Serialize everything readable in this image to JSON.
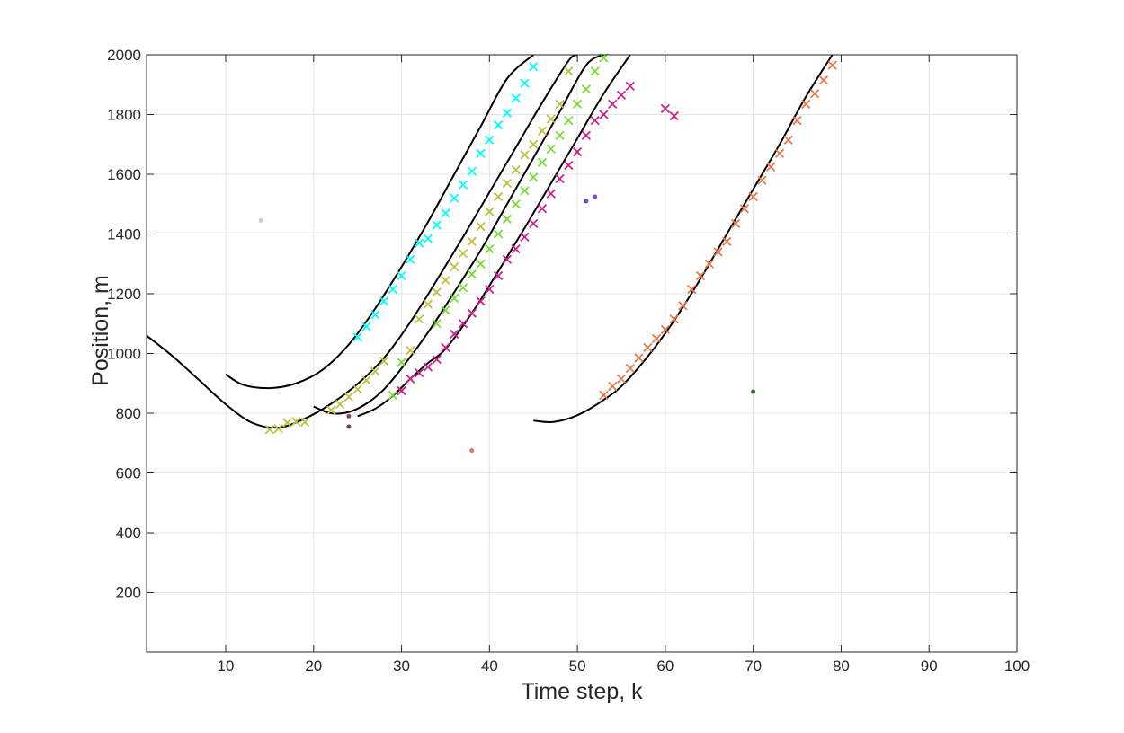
{
  "chart_data": {
    "type": "scatter",
    "title": "",
    "xlabel": "Time step, k",
    "ylabel": "Position, m",
    "xlim": [
      1,
      100
    ],
    "ylim": [
      0,
      2000
    ],
    "xticks": [
      10,
      20,
      30,
      40,
      50,
      60,
      70,
      80,
      90,
      100
    ],
    "yticks": [
      200,
      400,
      600,
      800,
      1000,
      1200,
      1400,
      1600,
      1800,
      2000
    ],
    "grid": true,
    "box": true,
    "curves": [
      {
        "color": "#000000",
        "x": [
          10,
          12,
          15,
          18,
          21,
          24,
          27,
          30,
          33,
          36,
          39,
          42,
          45
        ],
        "y": [
          930,
          895,
          884,
          900,
          945,
          1030,
          1150,
          1290,
          1440,
          1600,
          1760,
          1920,
          2000
        ]
      },
      {
        "color": "#000000",
        "x": [
          1,
          4,
          7,
          10,
          13,
          16,
          19,
          22,
          25,
          28,
          31,
          34,
          37,
          40,
          43,
          46,
          49,
          50
        ],
        "y": [
          1060,
          990,
          910,
          830,
          768,
          752,
          782,
          832,
          898,
          985,
          1105,
          1245,
          1390,
          1540,
          1690,
          1840,
          1980,
          2000
        ]
      },
      {
        "color": "#000000",
        "x": [
          20,
          22,
          24,
          26,
          28,
          30,
          33,
          36,
          39,
          42,
          45,
          48,
          51,
          53
        ],
        "y": [
          822,
          800,
          804,
          832,
          880,
          950,
          1070,
          1205,
          1345,
          1500,
          1655,
          1810,
          1965,
          2000
        ]
      },
      {
        "color": "#000000",
        "x": [
          25,
          27,
          29,
          31,
          33,
          35,
          38,
          41,
          44,
          47,
          50,
          53,
          56
        ],
        "y": [
          790,
          815,
          858,
          915,
          968,
          1015,
          1135,
          1275,
          1420,
          1570,
          1720,
          1870,
          2000
        ]
      },
      {
        "color": "#000000",
        "x": [
          45,
          47,
          49,
          51,
          53,
          55,
          58,
          61,
          64,
          67,
          70,
          73,
          76,
          79
        ],
        "y": [
          775,
          770,
          782,
          808,
          845,
          890,
          990,
          1110,
          1250,
          1400,
          1550,
          1700,
          1860,
          2000
        ]
      }
    ],
    "series": [
      {
        "color": "#00ffff",
        "marker": "x",
        "x": [
          25,
          26,
          27,
          28,
          29,
          30,
          31,
          32,
          33,
          34,
          35,
          36,
          37,
          38,
          39,
          40,
          41,
          42,
          43,
          44,
          45
        ],
        "y": [
          1055,
          1090,
          1130,
          1175,
          1215,
          1260,
          1315,
          1370,
          1385,
          1430,
          1470,
          1520,
          1565,
          1610,
          1670,
          1715,
          1765,
          1805,
          1855,
          1905,
          1960
        ]
      },
      {
        "color": "#bfbf40",
        "marker": "x",
        "x": [
          15,
          16,
          17,
          18,
          19,
          22,
          23,
          24,
          25,
          26,
          27,
          28,
          31,
          32,
          33,
          34,
          35,
          36,
          37,
          38,
          39,
          40,
          41,
          42,
          43,
          44,
          45,
          46,
          47,
          48,
          49
        ],
        "y": [
          745,
          748,
          768,
          772,
          770,
          810,
          830,
          855,
          880,
          910,
          940,
          975,
          1010,
          1115,
          1165,
          1205,
          1245,
          1290,
          1335,
          1375,
          1425,
          1475,
          1525,
          1570,
          1615,
          1665,
          1700,
          1745,
          1785,
          1835,
          1945
        ]
      },
      {
        "color": "#77dd33",
        "marker": "x",
        "x": [
          29,
          30,
          34,
          35,
          36,
          37,
          38,
          39,
          40,
          41,
          42,
          43,
          44,
          45,
          46,
          47,
          48,
          49,
          50,
          51,
          52,
          53
        ],
        "y": [
          860,
          970,
          1100,
          1145,
          1185,
          1220,
          1265,
          1300,
          1350,
          1400,
          1450,
          1500,
          1545,
          1590,
          1640,
          1685,
          1730,
          1780,
          1835,
          1885,
          1945,
          1990
        ]
      },
      {
        "color": "#cc2288",
        "marker": "x",
        "x": [
          30,
          31,
          32,
          33,
          34,
          35,
          36,
          37,
          38,
          39,
          40,
          41,
          42,
          43,
          44,
          45,
          46,
          47,
          48,
          49,
          50,
          51,
          52,
          53,
          54,
          55,
          56,
          60,
          61
        ],
        "y": [
          875,
          915,
          935,
          955,
          980,
          1020,
          1065,
          1100,
          1135,
          1175,
          1215,
          1260,
          1315,
          1350,
          1390,
          1435,
          1485,
          1535,
          1585,
          1630,
          1675,
          1730,
          1780,
          1800,
          1835,
          1865,
          1895,
          1820,
          1795
        ]
      },
      {
        "color": "#e8784a",
        "marker": "x",
        "x": [
          53,
          54,
          55,
          56,
          57,
          58,
          59,
          60,
          61,
          62,
          63,
          64,
          65,
          66,
          67,
          68,
          69,
          70,
          71,
          72,
          73,
          74,
          75,
          76,
          77,
          78,
          79
        ],
        "y": [
          860,
          890,
          915,
          950,
          985,
          1020,
          1050,
          1080,
          1115,
          1160,
          1215,
          1260,
          1300,
          1340,
          1375,
          1435,
          1485,
          1525,
          1580,
          1625,
          1670,
          1715,
          1780,
          1835,
          1870,
          1915,
          1965
        ]
      }
    ],
    "clutter": [
      {
        "x": 14,
        "y": 1445,
        "color": "#cccccc"
      },
      {
        "x": 24,
        "y": 790,
        "color": "#8a4466"
      },
      {
        "x": 24,
        "y": 755,
        "color": "#664466"
      },
      {
        "x": 38,
        "y": 675,
        "color": "#dd7766"
      },
      {
        "x": 51,
        "y": 1510,
        "color": "#8844cc"
      },
      {
        "x": 52,
        "y": 1525,
        "color": "#8844cc"
      },
      {
        "x": 70,
        "y": 872,
        "color": "#336622"
      }
    ]
  }
}
